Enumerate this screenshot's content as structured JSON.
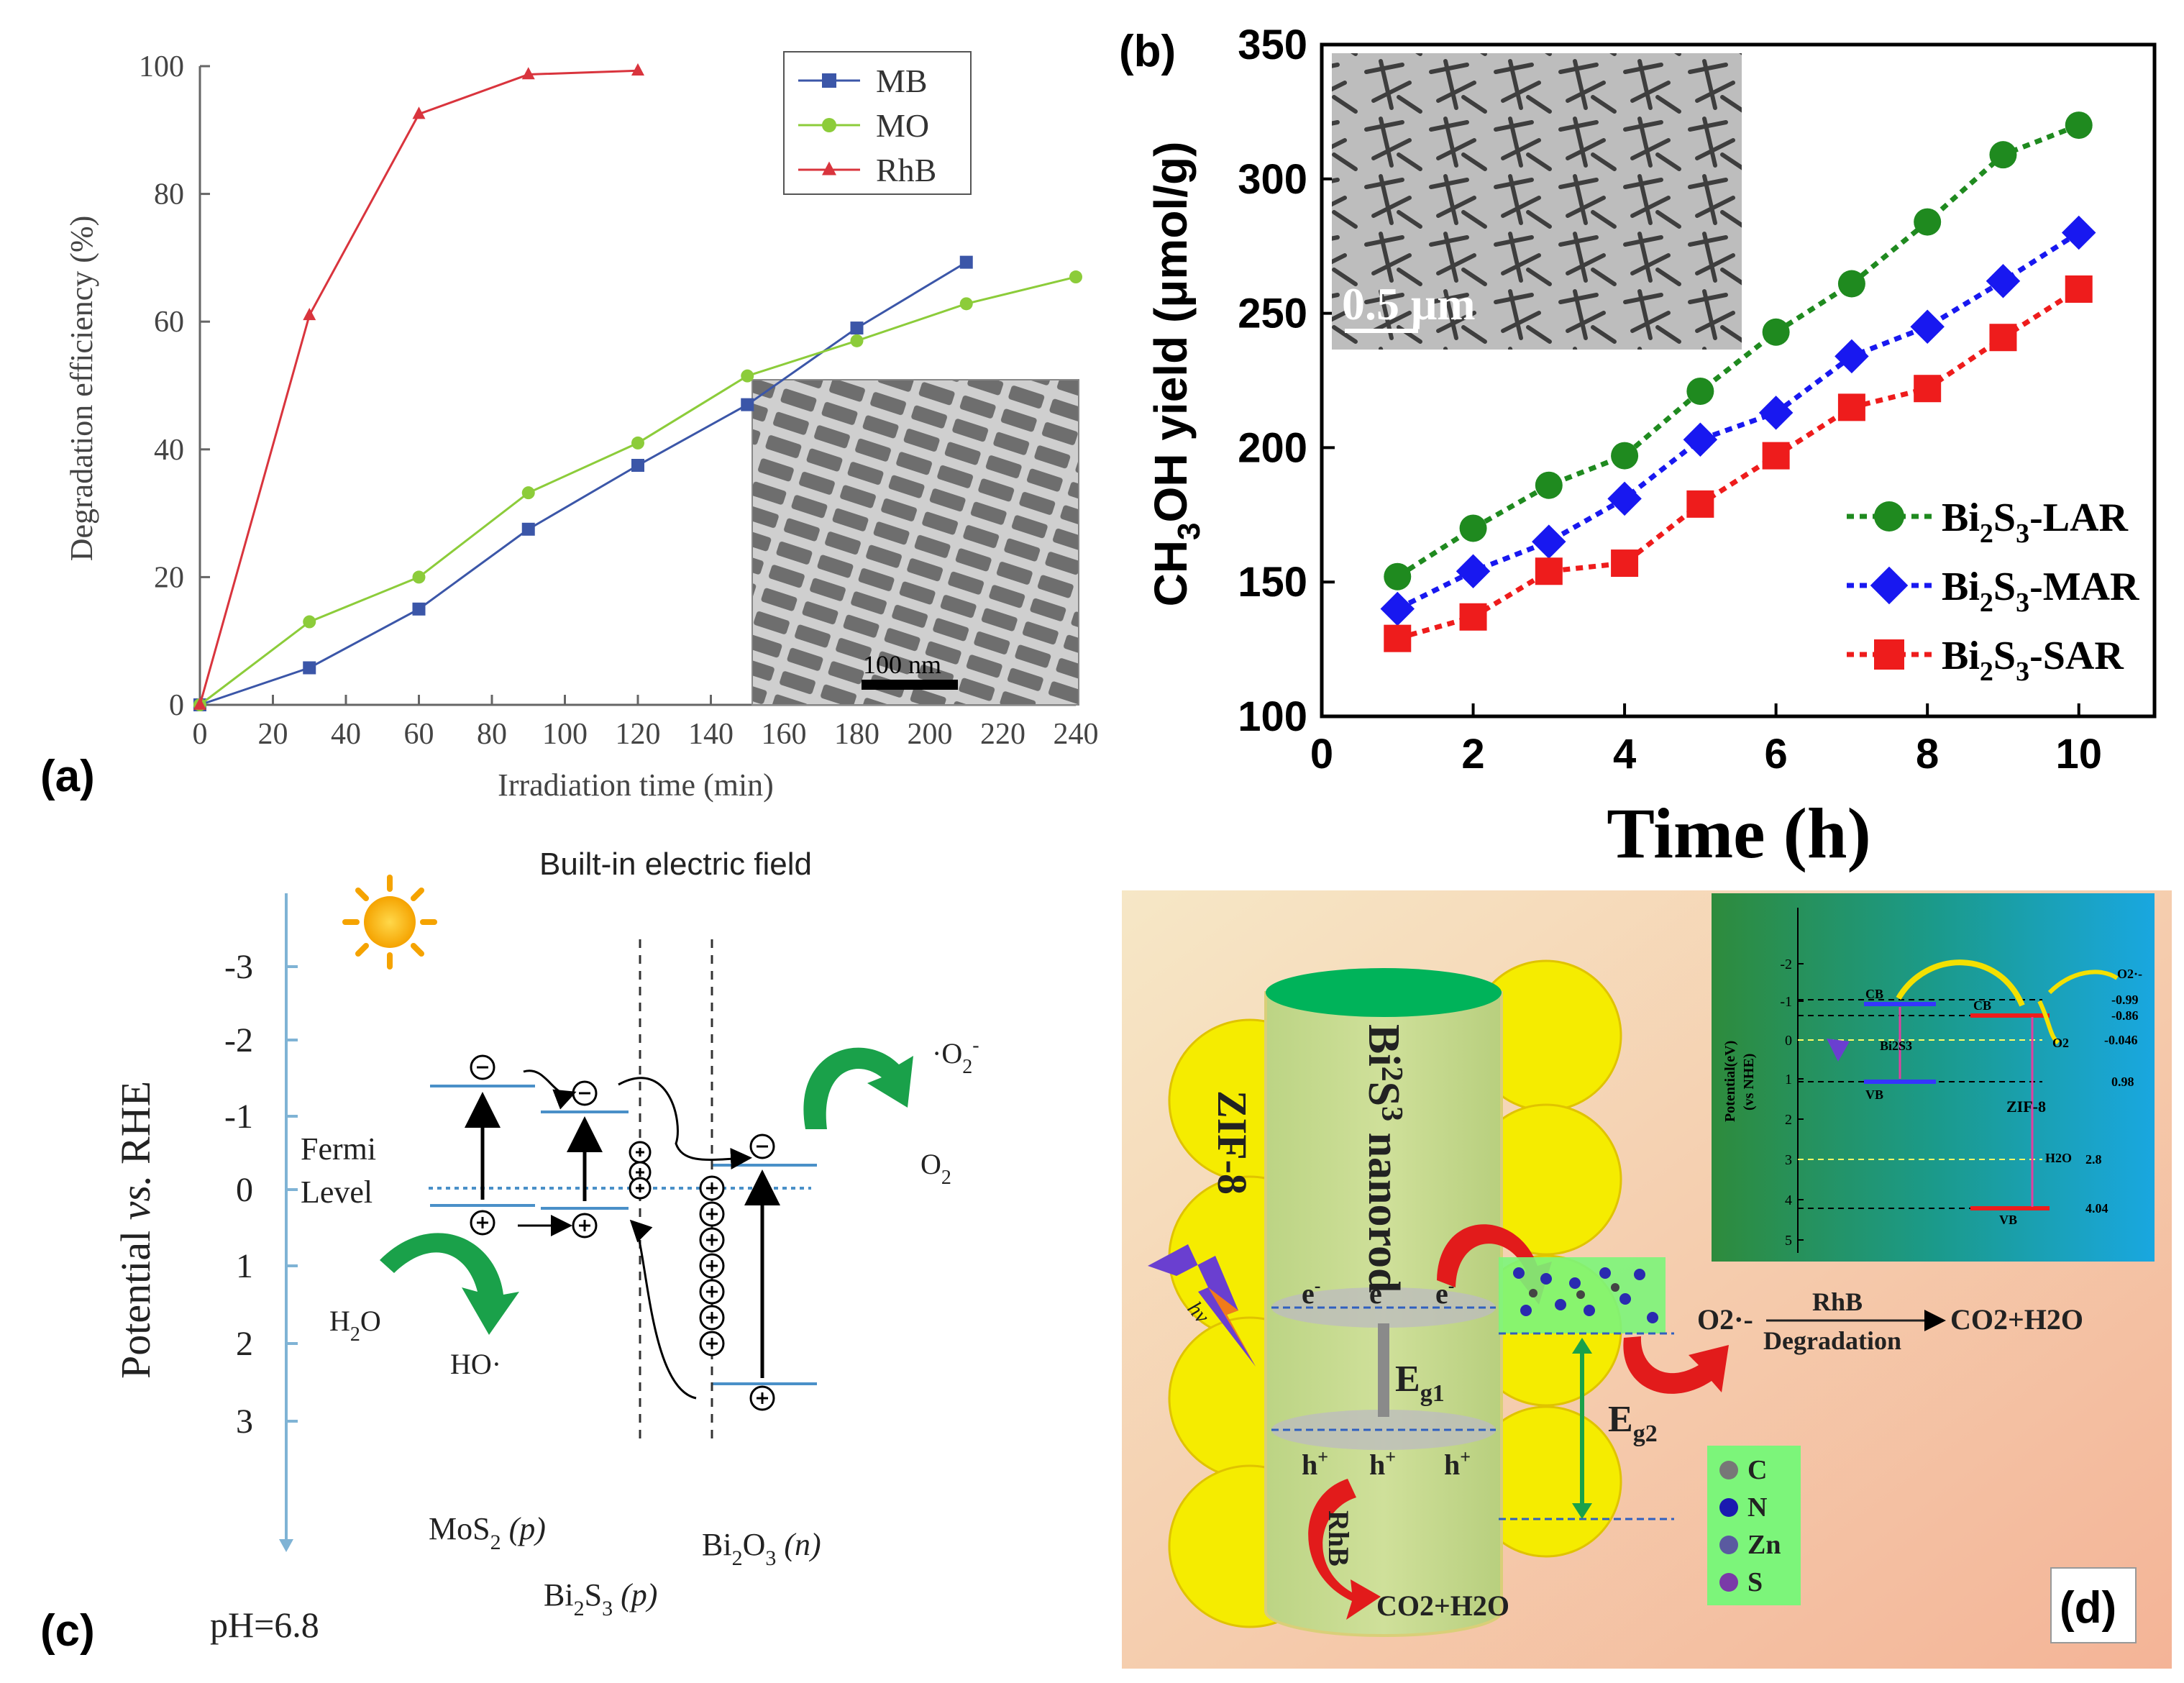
{
  "colors": {
    "mb": "#3b56a8",
    "mo": "#8ccc3a",
    "rhb": "#d9343d",
    "lar": "#1f8a1f",
    "mar": "#1818f0",
    "sar": "#ee1c1c",
    "axis_blue": "#7fb3d5",
    "arrow_green": "#1aa14a"
  },
  "panel_labels": {
    "a": "(a)",
    "b": "(b)",
    "c": "(c)",
    "d": "(d)"
  },
  "chart_data": [
    {
      "type": "line",
      "panel": "a",
      "title": "",
      "xlabel": "Irradiation time (min)",
      "ylabel": "Degradation efficiency (%)",
      "xlim": [
        0,
        240
      ],
      "ylim": [
        0,
        100
      ],
      "xticks": [
        0,
        20,
        40,
        60,
        80,
        100,
        120,
        140,
        160,
        180,
        200,
        220,
        240
      ],
      "yticks": [
        0,
        20,
        40,
        60,
        80,
        100
      ],
      "legend_position": "top-right",
      "inset_scale_label": "100 nm",
      "series": [
        {
          "name": "MB",
          "key": "mb",
          "marker": "square",
          "x": [
            0,
            30,
            60,
            90,
            120,
            150,
            180,
            210
          ],
          "y": [
            0,
            5.8,
            15,
            27.5,
            37.5,
            47,
            59,
            69.3
          ]
        },
        {
          "name": "MO",
          "key": "mo",
          "marker": "circle",
          "x": [
            0,
            30,
            60,
            90,
            120,
            150,
            180,
            210,
            240
          ],
          "y": [
            0,
            13,
            20,
            33.2,
            41,
            51.5,
            57,
            62.8,
            67
          ]
        },
        {
          "name": "RhB",
          "key": "rhb",
          "marker": "triangle",
          "x": [
            0,
            30,
            60,
            90,
            120
          ],
          "y": [
            0,
            61,
            92.5,
            98.7,
            99.3
          ]
        }
      ]
    },
    {
      "type": "line",
      "panel": "b",
      "title": "",
      "xlabel": "Time (h)",
      "ylabel_parts": [
        "CH",
        "3",
        "OH yield (μmol/g)"
      ],
      "xlim": [
        0,
        11
      ],
      "ylim": [
        100,
        350
      ],
      "xticks": [
        0,
        2,
        4,
        6,
        8,
        10
      ],
      "yticks": [
        100,
        150,
        200,
        250,
        300,
        350
      ],
      "legend_position": "bottom-right",
      "inset_scale_label": "0.5 μm",
      "series": [
        {
          "name_parts": [
            "Bi",
            "2",
            "S",
            "3",
            "-LAR"
          ],
          "key": "lar",
          "marker": "circle",
          "x": [
            1,
            2,
            3,
            4,
            5,
            6,
            7,
            8,
            9,
            10
          ],
          "y": [
            152,
            170,
            186,
            197,
            221,
            243,
            261,
            284,
            309,
            320
          ]
        },
        {
          "name_parts": [
            "Bi",
            "2",
            "S",
            "3",
            "-MAR"
          ],
          "key": "mar",
          "marker": "diamond",
          "x": [
            1,
            2,
            3,
            4,
            5,
            6,
            7,
            8,
            9,
            10
          ],
          "y": [
            140,
            154,
            165,
            181,
            203,
            213,
            234,
            245,
            262,
            280
          ]
        },
        {
          "name_parts": [
            "Bi",
            "2",
            "S",
            "3",
            "-SAR"
          ],
          "key": "sar",
          "marker": "square",
          "x": [
            1,
            2,
            3,
            4,
            5,
            6,
            7,
            8,
            9,
            10
          ],
          "y": [
            129,
            137,
            154,
            157,
            179,
            197,
            215,
            222,
            241,
            259
          ]
        }
      ]
    }
  ],
  "panel_c": {
    "title": "Built-in electric field",
    "ylabel_parts": [
      "Potential ",
      "vs.",
      " RHE"
    ],
    "ticks": [
      "-3",
      "-2",
      "-1",
      "0",
      "1",
      "2",
      "3"
    ],
    "fermi_line1": "Fermi",
    "fermi_line2": "Level",
    "o2_radical_parts": [
      "·O",
      "2",
      "-"
    ],
    "o2_parts": [
      "O",
      "2"
    ],
    "h2o_parts": [
      "H",
      "2",
      "O"
    ],
    "ho_radical": "HO·",
    "mos2_parts": [
      "MoS",
      "2",
      " (p)"
    ],
    "bi2s3_parts": [
      "Bi",
      "2",
      "S",
      "3",
      " (p)"
    ],
    "bi2o3_parts": [
      "Bi",
      "2",
      "O",
      "3",
      " (n)"
    ],
    "ph": "pH=6.8"
  },
  "panel_d": {
    "zif_label": "ZIF-8",
    "rod_label_parts": [
      "Bi",
      "2",
      "S",
      "3",
      " nanorod"
    ],
    "hv": "hv",
    "e_minus": "e",
    "h_plus": "h",
    "eg1_parts": [
      "E",
      "g1"
    ],
    "eg2_parts": [
      "E",
      "g2"
    ],
    "rhb": "RhB",
    "co2h2o": "CO2+H2O",
    "o2_radical": "O2·-",
    "degradation_rhb": "RhB",
    "degradation": "Degradation",
    "legend": [
      "C",
      "N",
      "Zn",
      "S"
    ],
    "inset": {
      "ylabel": "Potential(eV)",
      "ylabel2": "(vs NHE)",
      "ticks": [
        "-2",
        "-1",
        "0",
        "1",
        "2",
        "3",
        "4",
        "5"
      ],
      "levels": [
        "-0.99",
        "-0.86",
        "-0.046",
        "0.98",
        "2.8",
        "4.04"
      ],
      "cb1": "CB",
      "cb2": "CB",
      "bi2s3": "Bi2S3",
      "vb1": "VB",
      "zif8": "ZIF-8",
      "h2o": "H2O",
      "vb2": "VB",
      "o2": "O2",
      "o2r": "O2·-"
    }
  }
}
